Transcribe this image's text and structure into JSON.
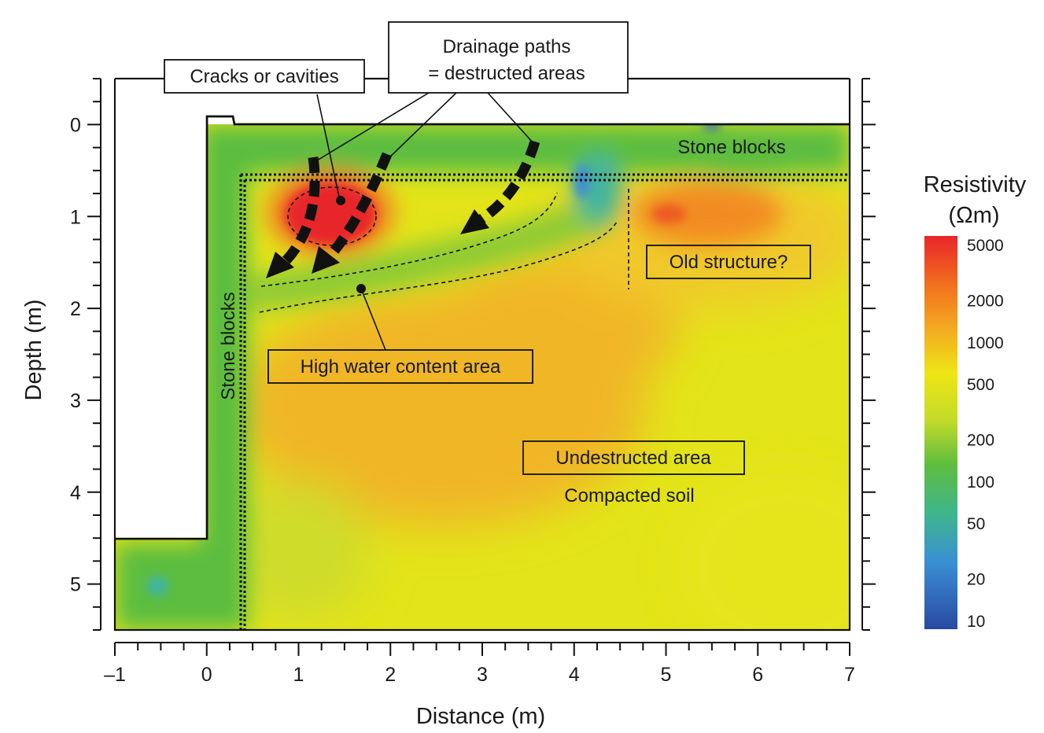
{
  "chart_data": {
    "type": "heatmap",
    "xlabel": "Distance (m)",
    "ylabel": "Depth (m)",
    "xlim": [
      -1,
      7
    ],
    "ylim": [
      5.5,
      -0.5
    ],
    "y_inverted": true,
    "x_ticks": [
      "–1",
      "0",
      "1",
      "2",
      "3",
      "4",
      "5",
      "6",
      "7"
    ],
    "y_ticks": [
      "0",
      "1",
      "2",
      "3",
      "4",
      "5"
    ],
    "colorbar": {
      "title": "Resistivity",
      "unit": "(Ωm)",
      "scale": "log",
      "range": [
        10,
        5000
      ],
      "tick_labels": [
        "5000",
        "2000",
        "1000",
        "500",
        "200",
        "100",
        "50",
        "20",
        "10"
      ],
      "colors": [
        "#e8252a",
        "#f2731d",
        "#f3ac21",
        "#eee514",
        "#c2db2a",
        "#5fbd3d",
        "#3eb58e",
        "#3a8fd4",
        "#2849a3"
      ]
    },
    "zones": [
      {
        "name": "high resistivity anomaly",
        "x": [
          0.7,
          1.9
        ],
        "depth": [
          0.5,
          1.6
        ],
        "resistivity": 5000
      },
      {
        "name": "high resistivity lens (old structure)",
        "x": [
          4.4,
          6.4
        ],
        "depth": [
          0.7,
          1.4
        ],
        "resistivity": 1800
      },
      {
        "name": "compacted soil",
        "x": [
          1.5,
          4.5
        ],
        "depth": [
          2.2,
          4.0
        ],
        "resistivity": 1300
      },
      {
        "name": "surface stone blocks",
        "x": [
          0.3,
          7.0
        ],
        "depth": [
          0.0,
          0.55
        ],
        "resistivity": 100
      },
      {
        "name": "left stone blocks",
        "x": [
          0.0,
          0.4
        ],
        "depth": [
          0.0,
          5.5
        ],
        "resistivity": 100
      },
      {
        "name": "high water content band",
        "x": [
          0.6,
          4.4
        ],
        "depth": [
          1.3,
          1.9
        ],
        "resistivity": 180
      }
    ],
    "annotations": {
      "cracks_label": "Cracks or cavities",
      "drainage_label_line1": "Drainage paths",
      "drainage_label_line2": "= destructed areas",
      "stone_blocks_top": "Stone blocks",
      "stone_blocks_left": "Stone blocks",
      "old_structure": "Old structure?",
      "high_water": "High water content area",
      "undestructed": "Undestructed area",
      "compacted": "Compacted soil"
    }
  }
}
